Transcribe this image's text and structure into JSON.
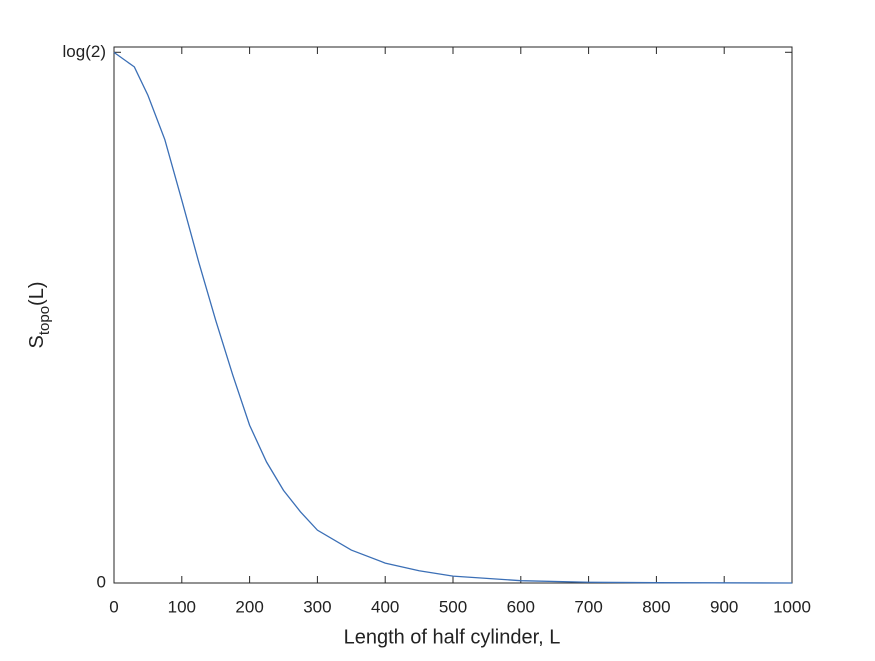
{
  "chart_data": {
    "type": "line",
    "xlabel": "Length of half cylinder, L",
    "ylabel": {
      "main": "S",
      "sub": "topo",
      "suffix": "(L)"
    },
    "x": [
      0,
      30,
      50,
      75,
      100,
      125,
      150,
      175,
      200,
      225,
      250,
      275,
      300,
      350,
      400,
      450,
      500,
      600,
      700,
      800,
      1000
    ],
    "series": [
      {
        "color": "#3b6fb6",
        "values": [
          0.693,
          0.674,
          0.637,
          0.579,
          0.5,
          0.419,
          0.343,
          0.272,
          0.206,
          0.158,
          0.121,
          0.093,
          0.069,
          0.043,
          0.026,
          0.016,
          0.009,
          0.003,
          0.001,
          0.0004,
          0
        ]
      }
    ],
    "xlim": [
      0,
      1000
    ],
    "xticks": [
      0,
      100,
      200,
      300,
      400,
      500,
      600,
      700,
      800,
      900,
      1000
    ],
    "ylim": [
      0,
      0.7
    ],
    "yticks": [
      0,
      {
        "value": 0.6931,
        "label": "log(2)"
      }
    ],
    "grid": false
  }
}
